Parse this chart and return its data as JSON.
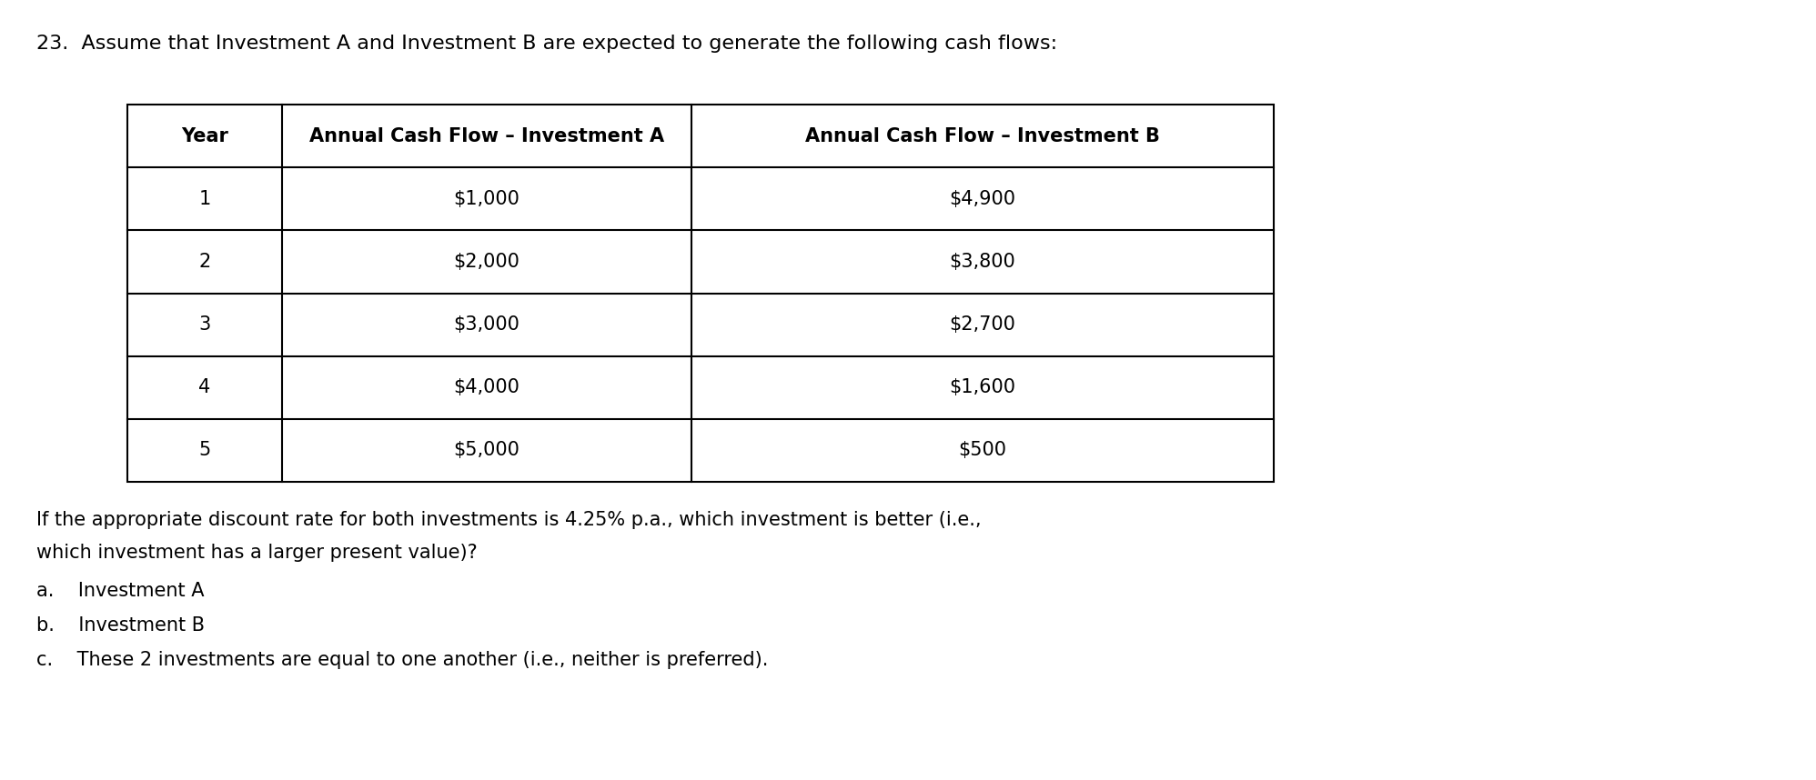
{
  "question_number": "23.",
  "question_text": "Assume that Investment A and Investment B are expected to generate the following cash flows:",
  "table_headers": [
    "Year",
    "Annual Cash Flow – Investment A",
    "Annual Cash Flow – Investment B"
  ],
  "table_rows": [
    [
      "1",
      "$1,000",
      "$4,900"
    ],
    [
      "2",
      "$2,000",
      "$3,800"
    ],
    [
      "3",
      "$3,000",
      "$2,700"
    ],
    [
      "4",
      "$4,000",
      "$1,600"
    ],
    [
      "5",
      "$5,000",
      "$500"
    ]
  ],
  "follow_up_line1": "If the appropriate discount rate for both investments is 4.25% p.a., which investment is better (i.e.,",
  "follow_up_line2": "which investment has a larger present value)?",
  "option_a": "a.    Investment A",
  "option_b": "b.    Investment B",
  "option_c": "c.    These 2 investments are equal to one another (i.e., neither is preferred).",
  "bg_color": "#ffffff",
  "text_color": "#000000",
  "table_border_color": "#000000",
  "header_font_size": 15,
  "body_font_size": 15,
  "question_font_size": 16,
  "body_text_font_size": 15
}
